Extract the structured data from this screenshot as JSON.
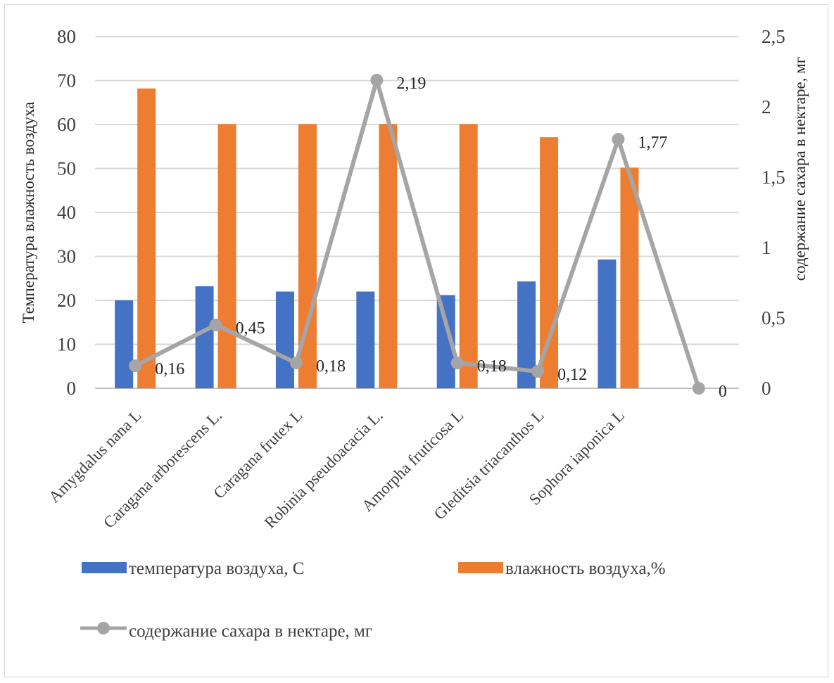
{
  "chart_data": {
    "type": "bar",
    "categories": [
      "Amygdalus nana L",
      "Caragana arborescens  L.",
      "Caragana frutex  L",
      "Robinia pseudoacacia  L.",
      "Amorpha fruticosa L",
      "Gleditsia triacanthos  L",
      "Sophora iaponica L",
      ""
    ],
    "series": [
      {
        "name": "температура воздуха, С",
        "type": "bar",
        "axis": "left",
        "color": "#4472C4",
        "values": [
          20,
          23.2,
          22,
          22,
          21.2,
          24.3,
          29.3,
          null
        ]
      },
      {
        "name": "влажность воздуха,%",
        "type": "bar",
        "axis": "left",
        "color": "#ED7D31",
        "values": [
          68.2,
          60.1,
          60.1,
          60.1,
          60.1,
          57.1,
          50.2,
          null
        ]
      },
      {
        "name": "содержание сахара в нектаре, мг",
        "type": "line",
        "axis": "right",
        "color": "#A5A5A5",
        "values": [
          0.16,
          0.45,
          0.18,
          2.19,
          0.18,
          0.12,
          1.77,
          0
        ],
        "labels": [
          "0,16",
          "0,45",
          "0,18",
          "2,19",
          "0,18",
          "0,12",
          "1,77",
          "0"
        ]
      }
    ],
    "ylabel": "Температура  влажность воздуха",
    "y2label": "содержание сахара в нектаре, мг",
    "ylim": [
      0,
      80
    ],
    "y2lim": [
      0,
      2.5
    ],
    "yticks": [
      "0",
      "10",
      "20",
      "30",
      "40",
      "50",
      "60",
      "70",
      "80"
    ],
    "y2ticks": [
      "0",
      "0,5",
      "1",
      "1,5",
      "2",
      "2,5"
    ],
    "grid": true,
    "legend_position": "bottom"
  }
}
